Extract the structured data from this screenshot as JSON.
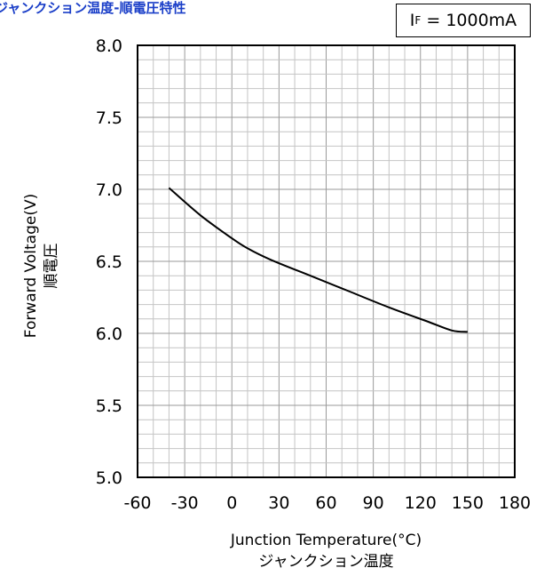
{
  "title": "ジャンクション温度-順電圧特性",
  "condition": {
    "symbol": "I",
    "subscript": "F",
    "value": "= 1000mA"
  },
  "chart_data": {
    "type": "line",
    "title": "ジャンクション温度-順電圧特性",
    "xlabel": "Junction Temperature(°C)",
    "xlabel_sub": "ジャンクション温度",
    "ylabel": "Forward Voltage(V)",
    "ylabel_sub": "順電圧",
    "xlim": [
      -60,
      180
    ],
    "ylim": [
      5.0,
      8.0
    ],
    "xticks": [
      -60,
      -30,
      0,
      30,
      60,
      90,
      120,
      150,
      180
    ],
    "yticks": [
      5.0,
      5.5,
      6.0,
      6.5,
      7.0,
      7.5,
      8.0
    ],
    "xtick_labels": [
      "-60",
      "-30",
      "0",
      "30",
      "60",
      "90",
      "120",
      "150",
      "180"
    ],
    "ytick_labels": [
      "5.0",
      "5.5",
      "6.0",
      "6.5",
      "7.0",
      "7.5",
      "8.0"
    ],
    "grid": true,
    "series": [
      {
        "x": [
          -40,
          -20,
          0,
          10,
          25,
          50,
          75,
          100,
          125,
          140,
          150
        ],
        "y": [
          7.01,
          6.82,
          6.66,
          6.59,
          6.51,
          6.4,
          6.29,
          6.18,
          6.08,
          6.02,
          6.01
        ]
      }
    ]
  }
}
